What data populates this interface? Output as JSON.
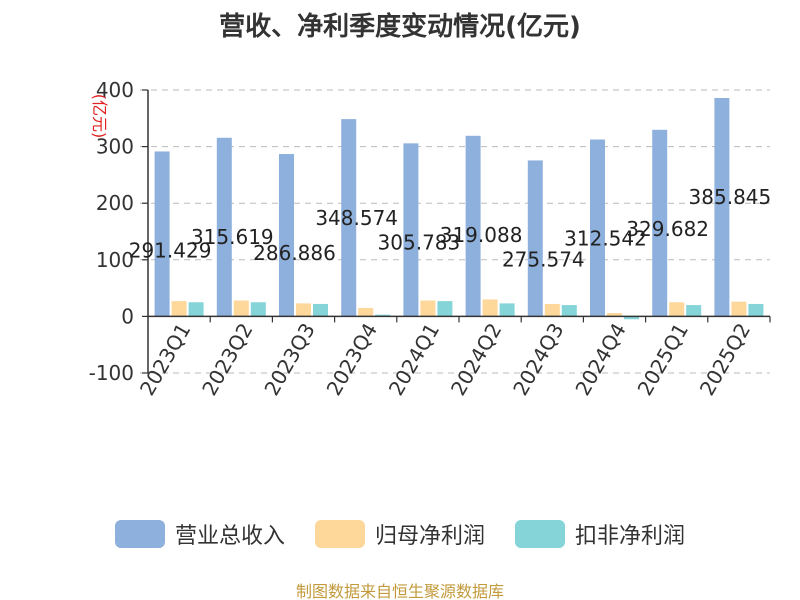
{
  "title": "营收、净利季度变动情况(亿元)",
  "source": "制图数据来自恒生聚源数据库",
  "colors": {
    "revenue": "#8eb0dd",
    "net_profit": "#fed79b",
    "deducted_profit": "#84d4d8",
    "axis": "#333333",
    "grid": "#bbbbbb",
    "unit_label": "#e02020",
    "source": "#c29a3c"
  },
  "chart_data": {
    "type": "bar",
    "title": "营收、净利季度变动情况(亿元)",
    "ylabel": "(亿元)",
    "xlabel": "",
    "ylim": [
      -100,
      400
    ],
    "yticks": [
      -100,
      0,
      100,
      200,
      300,
      400
    ],
    "grid": true,
    "legend_position": "bottom",
    "categories": [
      "2023Q1",
      "2023Q2",
      "2023Q3",
      "2023Q4",
      "2024Q1",
      "2024Q2",
      "2024Q3",
      "2024Q4",
      "2025Q1",
      "2025Q2"
    ],
    "series": [
      {
        "name": "营业总收入",
        "color": "#8eb0dd",
        "values": [
          291.429,
          315.619,
          286.886,
          348.574,
          305.783,
          319.088,
          275.574,
          312.542,
          329.682,
          385.845
        ],
        "labels": [
          "291.429",
          "315.619",
          "286.886",
          "348.574",
          "305.783",
          "319.088",
          "275.574",
          "312.542",
          "329.682",
          "385.845"
        ]
      },
      {
        "name": "归母净利润",
        "color": "#fed79b",
        "values": [
          27,
          28,
          23,
          15,
          28,
          30,
          22,
          6,
          25,
          26
        ]
      },
      {
        "name": "扣非净利润",
        "color": "#84d4d8",
        "values": [
          25,
          25,
          22,
          3,
          27,
          23,
          20,
          -5,
          20,
          22
        ]
      }
    ]
  }
}
